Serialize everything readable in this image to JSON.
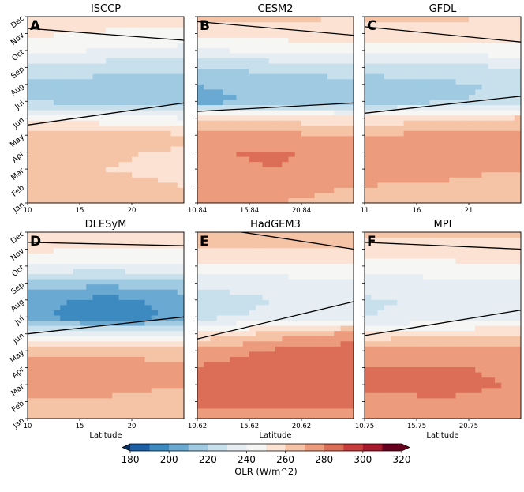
{
  "figure": {
    "colorbar": {
      "label": "OLR (W/m^2)",
      "ticks": [
        "180",
        "200",
        "220",
        "240",
        "260",
        "280",
        "300",
        "320"
      ],
      "levels": [
        180,
        190,
        200,
        210,
        220,
        230,
        240,
        250,
        260,
        270,
        280,
        290,
        300,
        310,
        320
      ],
      "colors": [
        "#053061",
        "#1d5fa5",
        "#3d8ac1",
        "#6aa9d1",
        "#9fcae2",
        "#c8dfec",
        "#e6eef4",
        "#f6f6f5",
        "#fbe2d3",
        "#f5c3a6",
        "#ec9c7d",
        "#dc6e58",
        "#c83c3c",
        "#a71a2e",
        "#67001f"
      ]
    }
  },
  "chart_data": [
    {
      "type": "heatmap",
      "letter": "A",
      "title": "ISCCP",
      "x": [
        10,
        25
      ],
      "xticks": [
        "10",
        "15",
        "20"
      ],
      "xtick_values": [
        10,
        15,
        20
      ],
      "xlabel": "",
      "y": [
        "Jan",
        "Feb",
        "Mar",
        "Apr",
        "May",
        "Jun",
        "Jul",
        "Aug",
        "Sep",
        "Oct",
        "Nov",
        "Dec"
      ],
      "z_pattern": [
        [
          277,
          274,
          271
        ],
        [
          276,
          272,
          270
        ],
        [
          274,
          270,
          268
        ],
        [
          274,
          271,
          269
        ],
        [
          278,
          275,
          272
        ],
        [
          258,
          254,
          251
        ],
        [
          230,
          226,
          224
        ],
        [
          228,
          225,
          224
        ],
        [
          237,
          234,
          233
        ],
        [
          252,
          249,
          247
        ],
        [
          262,
          258,
          256
        ],
        [
          270,
          266,
          264
        ]
      ],
      "contour_260_month": [
        [
          10,
          4.6
        ],
        [
          25,
          5.9
        ]
      ],
      "contour2_260_month": [
        [
          10,
          10.3
        ],
        [
          25,
          9.6
        ]
      ],
      "colorbar_range": [
        180,
        320
      ]
    },
    {
      "type": "heatmap",
      "letter": "B",
      "title": "CESM2",
      "x": [
        10.84,
        25.84
      ],
      "xticks": [
        "10.84",
        "15.84",
        "20.84"
      ],
      "xtick_values": [
        10.84,
        15.84,
        20.84
      ],
      "xlabel": "",
      "y": [
        "Jan",
        "Feb",
        "Mar",
        "Apr",
        "May",
        "Jun",
        "Jul",
        "Aug",
        "Sep",
        "Oct",
        "Nov",
        "Dec"
      ],
      "z_pattern": [
        [
          281,
          280,
          279
        ],
        [
          283,
          281,
          280
        ],
        [
          287,
          290,
          284
        ],
        [
          288,
          292,
          285
        ],
        [
          283,
          283,
          280
        ],
        [
          270,
          267,
          263
        ],
        [
          216,
          222,
          224
        ],
        [
          220,
          224,
          226
        ],
        [
          230,
          233,
          236
        ],
        [
          249,
          251,
          254
        ],
        [
          264,
          265,
          266
        ],
        [
          274,
          272,
          270
        ]
      ],
      "contour_260_month": [
        [
          10.84,
          5.4
        ],
        [
          25.84,
          5.9
        ]
      ],
      "contour2_260_month": [
        [
          10.84,
          10.7
        ],
        [
          25.84,
          9.9
        ]
      ],
      "colorbar_range": [
        180,
        320
      ]
    },
    {
      "type": "heatmap",
      "letter": "C",
      "title": "GFDL",
      "x": [
        11,
        26
      ],
      "xticks": [
        "11",
        "16",
        "21"
      ],
      "xtick_values": [
        11,
        16,
        21
      ],
      "xlabel": "",
      "y": [
        "Jan",
        "Feb",
        "Mar",
        "Apr",
        "May",
        "Jun",
        "Jul",
        "Aug",
        "Sep",
        "Oct",
        "Nov",
        "Dec"
      ],
      "z_pattern": [
        [
          277,
          276,
          275
        ],
        [
          280,
          279,
          277
        ],
        [
          282,
          282,
          280
        ],
        [
          283,
          283,
          283
        ],
        [
          281,
          283,
          285
        ],
        [
          263,
          268,
          272
        ],
        [
          225,
          229,
          233
        ],
        [
          225,
          228,
          232
        ],
        [
          234,
          236,
          240
        ],
        [
          252,
          253,
          256
        ],
        [
          266,
          266,
          267
        ],
        [
          272,
          271,
          270
        ]
      ],
      "contour_260_month": [
        [
          11,
          5.3
        ],
        [
          26,
          6.3
        ]
      ],
      "contour2_260_month": [
        [
          11,
          10.4
        ],
        [
          26,
          9.5
        ]
      ],
      "colorbar_range": [
        180,
        320
      ]
    },
    {
      "type": "heatmap",
      "letter": "D",
      "title": "DLESyM",
      "x": [
        10,
        25
      ],
      "xticks": [
        "10",
        "15",
        "20"
      ],
      "xtick_values": [
        10,
        15,
        20
      ],
      "xlabel": "Latitude",
      "y": [
        "Jan",
        "Feb",
        "Mar",
        "Apr",
        "May",
        "Jun",
        "Jul",
        "Aug",
        "Sep",
        "Oct",
        "Nov",
        "Dec"
      ],
      "z_pattern": [
        [
          275,
          274,
          272
        ],
        [
          279,
          278,
          276
        ],
        [
          282,
          284,
          280
        ],
        [
          283,
          285,
          281
        ],
        [
          278,
          278,
          276
        ],
        [
          248,
          244,
          242
        ],
        [
          212,
          204,
          212
        ],
        [
          214,
          206,
          214
        ],
        [
          226,
          222,
          228
        ],
        [
          248,
          246,
          249
        ],
        [
          262,
          259,
          260
        ],
        [
          270,
          267,
          265
        ]
      ],
      "contour_260_month": [
        [
          10,
          5.0
        ],
        [
          25,
          6.0
        ]
      ],
      "contour2_260_month": [
        [
          10,
          10.4
        ],
        [
          25,
          10.2
        ]
      ],
      "colorbar_range": [
        180,
        320
      ]
    },
    {
      "type": "heatmap",
      "letter": "E",
      "title": "HadGEM3",
      "x": [
        10.62,
        25.62
      ],
      "xticks": [
        "10.62",
        "15.62",
        "20.62"
      ],
      "xtick_values": [
        10.62,
        15.62,
        20.62
      ],
      "xlabel": "Latitude",
      "y": [
        "Jan",
        "Feb",
        "Mar",
        "Apr",
        "May",
        "Jun",
        "Jul",
        "Aug",
        "Sep",
        "Oct",
        "Nov",
        "Dec"
      ],
      "z_pattern": [
        [
          282,
          283,
          282
        ],
        [
          293,
          295,
          294
        ],
        [
          296,
          298,
          297
        ],
        [
          291,
          296,
          297
        ],
        [
          283,
          292,
          296
        ],
        [
          262,
          275,
          284
        ],
        [
          238,
          242,
          247
        ],
        [
          236,
          240,
          244
        ],
        [
          241,
          244,
          247
        ],
        [
          258,
          258,
          259
        ],
        [
          270,
          270,
          270
        ],
        [
          276,
          274,
          273
        ]
      ],
      "contour_260_month": [
        [
          10.62,
          4.7
        ],
        [
          25.62,
          6.9
        ]
      ],
      "contour2_260_month": [
        [
          10.62,
          11.4
        ],
        [
          25.62,
          10.0
        ]
      ],
      "colorbar_range": [
        180,
        320
      ]
    },
    {
      "type": "heatmap",
      "letter": "F",
      "title": "MPI",
      "x": [
        10.75,
        25.75
      ],
      "xticks": [
        "10.75",
        "15.75",
        "20.75"
      ],
      "xtick_values": [
        10.75,
        15.75,
        20.75
      ],
      "xlabel": "Latitude",
      "y": [
        "Jan",
        "Feb",
        "Mar",
        "Apr",
        "May",
        "Jun",
        "Jul",
        "Aug",
        "Sep",
        "Oct",
        "Nov",
        "Dec"
      ],
      "z_pattern": [
        [
          283,
          283,
          282
        ],
        [
          288,
          289,
          286
        ],
        [
          291,
          293,
          289
        ],
        [
          290,
          291,
          288
        ],
        [
          283,
          284,
          283
        ],
        [
          264,
          268,
          271
        ],
        [
          240,
          242,
          244
        ],
        [
          239,
          241,
          243
        ],
        [
          244,
          246,
          248
        ],
        [
          256,
          257,
          258
        ],
        [
          266,
          266,
          266
        ],
        [
          273,
          272,
          271
        ]
      ],
      "contour_260_month": [
        [
          10.75,
          4.9
        ],
        [
          25.75,
          6.4
        ]
      ],
      "contour2_260_month": [
        [
          10.75,
          10.4
        ],
        [
          25.75,
          10.0
        ]
      ],
      "colorbar_range": [
        180,
        320
      ]
    }
  ]
}
